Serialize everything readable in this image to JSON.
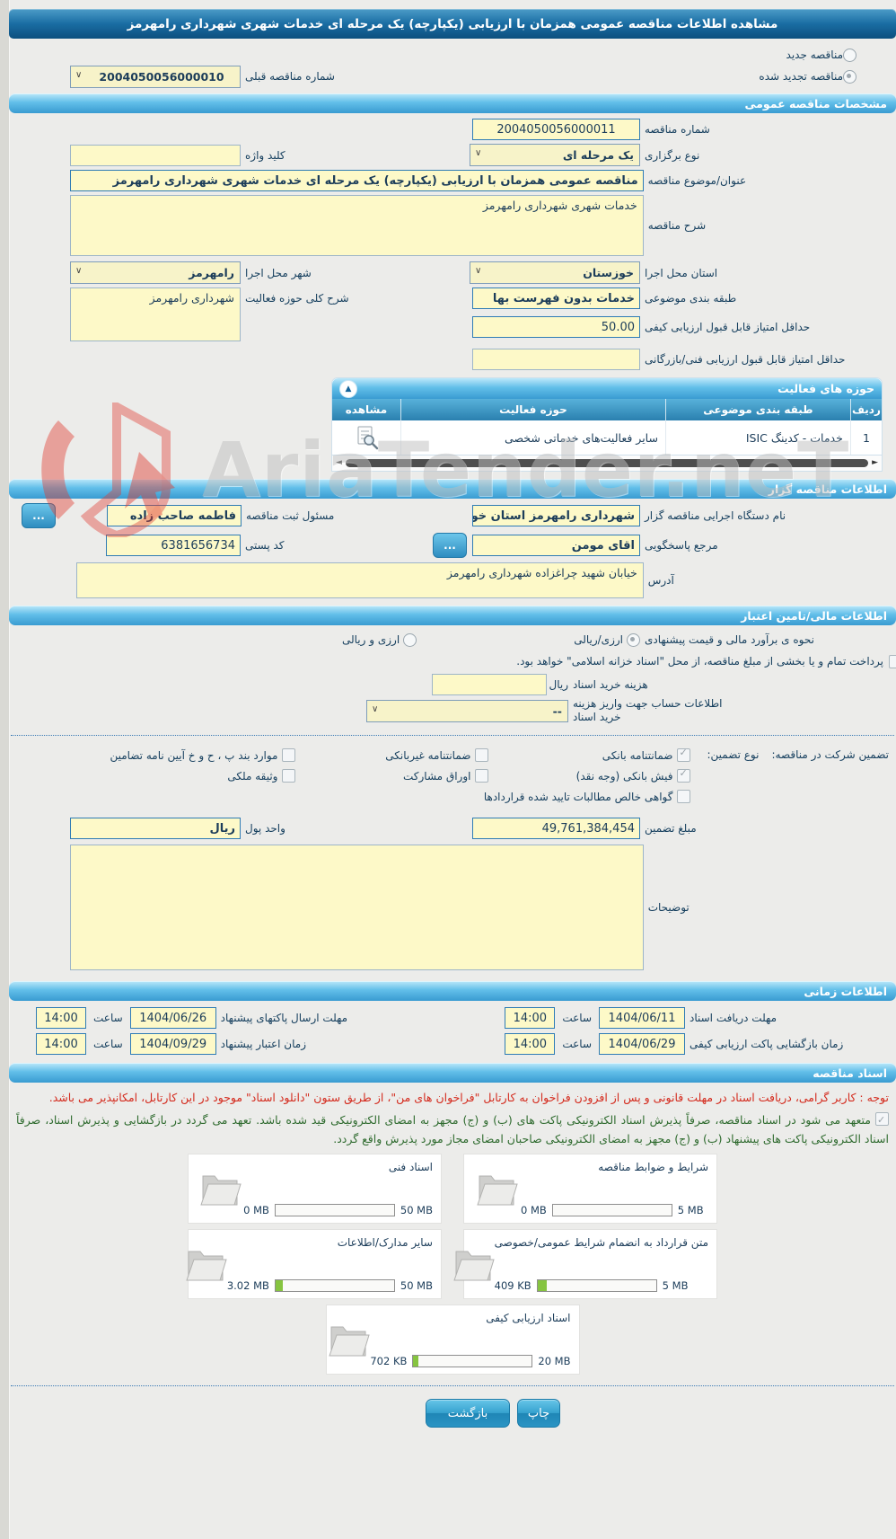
{
  "palette": {
    "accent_blue": "#399bd1",
    "dark_blue": "#0c4f7e",
    "input_yellow": "#fdf9c8",
    "progress_green": "#86c440",
    "notice_red": "#d42b1e",
    "notice_green": "#2f6b2f"
  },
  "watermark": {
    "text": "AriaTender.neT"
  },
  "titlebar": {
    "title": "مشاهده اطلاعات مناقصه عمومی همزمان با ارزیابی (یکپارچه) یک مرحله ای خدمات شهری شهرداری رامهرمز"
  },
  "top": {
    "radio_new": {
      "label": "مناقصه جدید",
      "selected": false
    },
    "radio_renewed": {
      "label": "مناقصه تجدید شده",
      "selected": true
    },
    "prev_label": "شماره مناقصه قبلی",
    "prev_value": "2004050056000010"
  },
  "section_titles": {
    "general": "مشخصات مناقصه عمومی",
    "employer": "اطلاعات مناقصه گزار",
    "financial": "اطلاعات مالی/تامین اعتبار",
    "schedule": "اطلاعات زمانی",
    "documents": "اسناد مناقصه"
  },
  "general": {
    "tender_no_label": "شماره مناقصه",
    "tender_no": "2004050056000011",
    "type_label": "نوع برگزاری",
    "type_value": "یک مرحله ای",
    "keyword_label": "کلید واژه",
    "keyword_value": "",
    "subject_label": "عنوان/موضوع مناقصه",
    "subject_value": "مناقصه عمومی همزمان با ارزیابی (یکپارچه) یک مرحله ای خدمات شهری شهرداری رامهرمز",
    "desc_label": "شرح مناقصه",
    "desc_value": "خدمات شهری شهرداری رامهرمز",
    "province_label": "استان محل اجرا",
    "province_value": "خوزستان",
    "city_label": "شهر محل اجرا",
    "city_value": "رامهرمز",
    "category_label": "طبقه بندی موضوعی",
    "category_value": "خدمات بدون فهرست بها",
    "activity_desc_label": "شرح کلی حوزه فعالیت",
    "activity_desc_value": "شهرداری رامهرمز",
    "min_quality_label": "حداقل امتیاز قابل قبول ارزیابی کیفی",
    "min_quality_value": "50.00",
    "min_tech_label": "حداقل امتیاز قابل قبول ارزیابی فنی/بازرگانی",
    "min_tech_value": ""
  },
  "activities": {
    "title": "حوزه های فعالیت",
    "col_row": "ردیف",
    "col_category": "طبقه بندی موضوعی",
    "col_field": "حوزه فعالیت",
    "col_view": "مشاهده",
    "rows": [
      {
        "no": "1",
        "category": "خدمات - کدینگ ISIC",
        "field": "سایر فعالیت‌های خدماتی شخصی"
      }
    ]
  },
  "employer": {
    "agency_label": "نام دستگاه اجرایی مناقصه گزار",
    "agency_value": "شهرداری رامهرمز استان خوزستان",
    "registrar_label": "مسئول ثبت مناقصه",
    "registrar_value": "فاطمه صاحب زاده",
    "contact_label": "مرجع پاسخگویی",
    "contact_value": "اقای مومن",
    "postal_label": "کد پستی",
    "postal_value": "6381656734",
    "address_label": "آدرس",
    "address_value": "خیابان شهید چراغزاده شهرداری رامهرمز",
    "more_button": "..."
  },
  "financial": {
    "estimate_label": "نحوه ی برآورد مالی و قیمت پیشنهادی",
    "estimate_options": [
      {
        "label": "ارزی/ریالی",
        "selected": true
      },
      {
        "label": "ارزی و ریالی",
        "selected": false
      }
    ],
    "treasury_note": "پرداخت تمام و یا بخشی از مبلغ مناقصه، از محل \"اسناد خزانه اسلامی\" خواهد بود.",
    "treasury_checked": false,
    "doc_fee_label": "هزینه خرید اسناد",
    "doc_fee_value": "",
    "doc_fee_currency": "ریال",
    "account_label": "اطلاعات حساب جهت واریز هزینه خرید اسناد",
    "account_value": "--",
    "guarantee_label": "تضمین شرکت در مناقصه:",
    "guarantee_type_label": "نوع تضمین:",
    "guarantee_options": [
      {
        "label": "ضمانتنامه بانکی",
        "checked": true
      },
      {
        "label": "ضمانتنامه غیربانکی",
        "checked": false
      },
      {
        "label": "موارد بند پ ، ح و خ آیین نامه تضامین",
        "checked": false
      },
      {
        "label": "فیش بانکی (وجه نقد)",
        "checked": true
      },
      {
        "label": "اوراق مشارکت",
        "checked": false
      },
      {
        "label": "وثیقه ملکی",
        "checked": false
      },
      {
        "label": "گواهی خالص مطالبات تایید شده قراردادها",
        "checked": false
      }
    ],
    "amount_label": "مبلغ تضمین",
    "amount_value": "49,761,384,454",
    "currency_label": "واحد پول",
    "currency_value": "ریال",
    "notes_label": "توضیحات",
    "notes_value": ""
  },
  "schedule": {
    "hour_label": "ساعت",
    "items": [
      {
        "label": "مهلت دریافت اسناد",
        "date": "1404/06/11",
        "time": "14:00"
      },
      {
        "label": "مهلت ارسال پاکتهای پیشنهاد",
        "date": "1404/06/26",
        "time": "14:00"
      },
      {
        "label": "زمان بازگشایی پاکت ارزیابی کیفی",
        "date": "1404/06/29",
        "time": "14:00"
      },
      {
        "label": "زمان اعتبار پیشنهاد",
        "date": "1404/09/29",
        "time": "14:00"
      }
    ]
  },
  "documents": {
    "notice": "توجه : کاربر گرامی، دریافت اسناد در مهلت قانونی و پس از افزودن فراخوان به کارتابل \"فراخوان های من\"، از طریق ستون \"دانلود اسناد\" موجود در این کارتابل، امکانپذیر می باشد.",
    "commitment": "متعهد می شود در اسناد مناقصه، صرفاً پذیرش اسناد الکترونیکی پاکت های (ب) و (ج) مجهز به امضای الکترونیکی قید شده باشد. تعهد می گردد در بازگشایی و پذیرش اسناد، صرفاً اسناد الکترونیکی پاکت های پیشنهاد (ب) و (ج) مجهز به امضای الکترونیکی صاحبان امضای مجاز مورد پذیرش واقع گردد.",
    "commitment_checked": true,
    "files": [
      {
        "title": "شرایط و ضوابط مناقصه",
        "current": "0 MB",
        "max": "5 MB",
        "pct": 0
      },
      {
        "title": "اسناد فنی",
        "current": "0 MB",
        "max": "50 MB",
        "pct": 0
      },
      {
        "title": "متن قرارداد به انضمام شرایط عمومی/خصوصی",
        "current": "409 KB",
        "max": "5 MB",
        "pct": 8
      },
      {
        "title": "سایر مدارک/اطلاعات",
        "current": "3.02 MB",
        "max": "50 MB",
        "pct": 6
      },
      {
        "title": "اسناد ارزیابی کیفی",
        "current": "702 KB",
        "max": "20 MB",
        "pct": 4
      }
    ]
  },
  "footer": {
    "back_label": "بازگشت",
    "print_label": "چاپ"
  }
}
